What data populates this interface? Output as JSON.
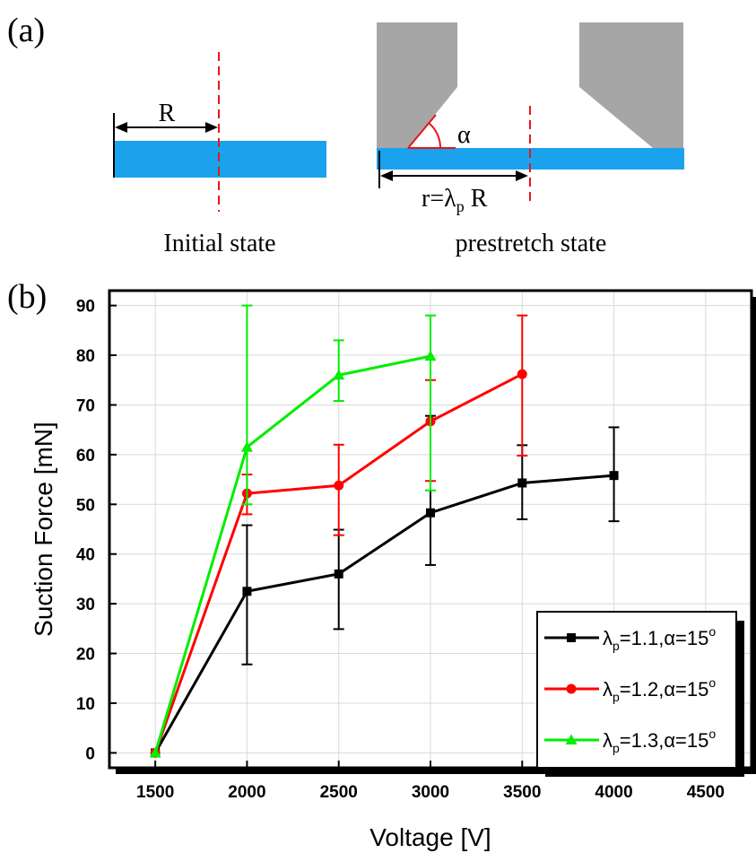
{
  "panel_a": {
    "label": "(a)",
    "initial_caption": "Initial state",
    "prestretch_caption": "prestretch state",
    "radius_label": "R",
    "angle_label": "α",
    "r_label_prefix": "r=λ",
    "r_label_sub": "p",
    "r_label_suffix": " R",
    "colors": {
      "film": "#1aa3ec",
      "wall": "#a6a6a6",
      "guide": "#e8151b"
    }
  },
  "panel_b": {
    "label": "(b)"
  },
  "chart_data": {
    "type": "line",
    "xlabel": "Voltage [V]",
    "ylabel": "Suction Force [mN]",
    "xlim": [
      1250,
      4750
    ],
    "ylim": [
      -3,
      93
    ],
    "xticks": [
      1500,
      2000,
      2500,
      3000,
      3500,
      4000,
      4500
    ],
    "yticks": [
      0,
      10,
      20,
      30,
      40,
      50,
      60,
      70,
      80,
      90
    ],
    "grid": true,
    "legend_position": "bottom-right",
    "series": [
      {
        "legend_symbol": "λ",
        "legend_sub": "p",
        "legend_rest": "=1.1,α=15",
        "legend_sup": "o",
        "color": "#000000",
        "marker": "square",
        "x": [
          1500,
          2000,
          2500,
          3000,
          3500,
          4000
        ],
        "y": [
          0,
          32.5,
          36,
          48.3,
          54.3,
          55.8
        ],
        "err_low": [
          0,
          17.8,
          24.9,
          37.8,
          47,
          46.6
        ],
        "err_high": [
          0,
          45.8,
          44.9,
          67.8,
          61.9,
          65.5
        ]
      },
      {
        "legend_symbol": "λ",
        "legend_sub": "p",
        "legend_rest": "=1.2,α=15",
        "legend_sup": "o",
        "color": "#ff0000",
        "marker": "circle",
        "x": [
          1500,
          2000,
          2500,
          3000,
          3500
        ],
        "y": [
          0,
          52.2,
          53.8,
          66.7,
          76.2
        ],
        "err_low": [
          0,
          48,
          43.8,
          54.7,
          59.8
        ],
        "err_high": [
          0,
          56,
          62,
          75,
          88
        ]
      },
      {
        "legend_symbol": "λ",
        "legend_sub": "p",
        "legend_rest": "=1.3,α=15",
        "legend_sup": "o",
        "color": "#00ee00",
        "marker": "triangle",
        "x": [
          1500,
          2000,
          2500,
          3000
        ],
        "y": [
          0,
          61.5,
          76,
          79.8
        ],
        "err_low": [
          0,
          50,
          70.8,
          52.8
        ],
        "err_high": [
          0,
          90,
          83,
          88
        ]
      }
    ]
  }
}
